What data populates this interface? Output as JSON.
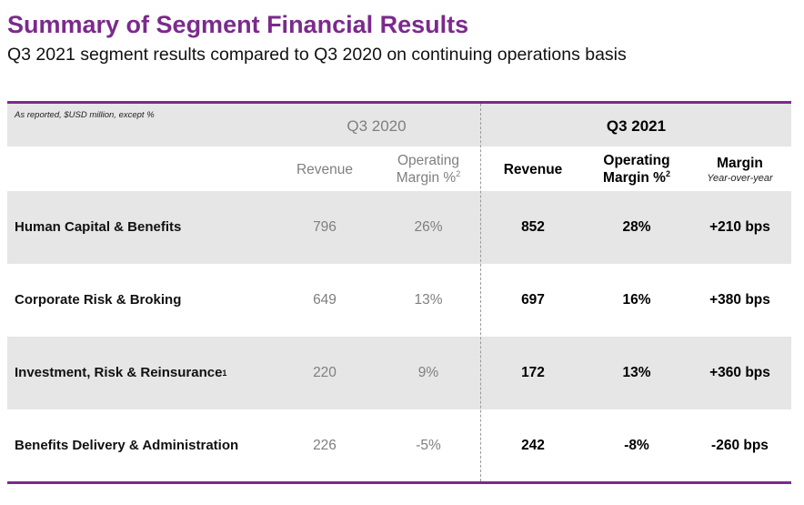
{
  "header": {
    "title": "Summary of Segment Financial Results",
    "subtitle": "Q3 2021 segment results compared to Q3 2020 on continuing operations basis"
  },
  "table": {
    "note": "As reported, $USD million, except %",
    "period_prior": "Q3 2020",
    "period_current": "Q3 2021",
    "columns": {
      "revenue": "Revenue",
      "operating": "Operating",
      "margin_pct": "Margin %",
      "footnote_2": "2",
      "margin": "Margin",
      "yoy": "Year-over-year"
    },
    "rows": [
      {
        "segment": "Human Capital & Benefits",
        "footnote": "",
        "rev_2020": "796",
        "om_2020": "26%",
        "rev_2021": "852",
        "om_2021": "28%",
        "margin_change": "+210 bps"
      },
      {
        "segment": "Corporate Risk & Broking",
        "footnote": "",
        "rev_2020": "649",
        "om_2020": "13%",
        "rev_2021": "697",
        "om_2021": "16%",
        "margin_change": "+380 bps"
      },
      {
        "segment": "Investment, Risk & Reinsurance",
        "footnote": "1",
        "rev_2020": "220",
        "om_2020": "9%",
        "rev_2021": "172",
        "om_2021": "13%",
        "margin_change": "+360 bps"
      },
      {
        "segment": "Benefits Delivery & Administration",
        "footnote": "",
        "rev_2020": "226",
        "om_2020": "-5%",
        "rev_2021": "242",
        "om_2021": "-8%",
        "margin_change": "-260 bps"
      }
    ]
  }
}
